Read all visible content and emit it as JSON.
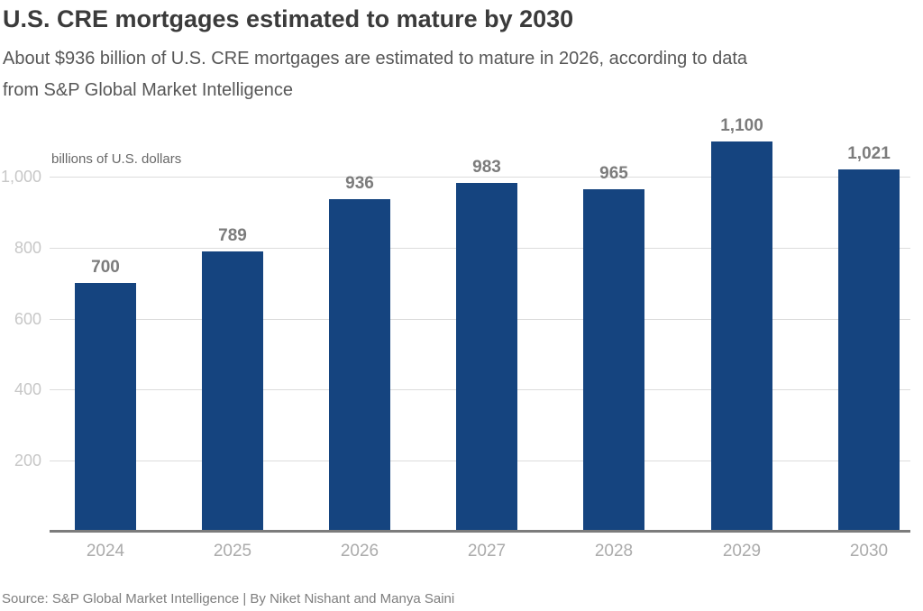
{
  "header": {
    "title": "U.S. CRE mortgages estimated to mature by 2030",
    "subtitle_line1": "About $936 billion of U.S. CRE mortgages are estimated to mature in 2026, according to data",
    "subtitle_line2": "from S&P Global Market Intelligence"
  },
  "chart_data": {
    "type": "bar",
    "title": "U.S. CRE mortgages estimated to mature by 2030",
    "unit_label": "billions of U.S. dollars",
    "categories": [
      "2024",
      "2025",
      "2026",
      "2027",
      "2028",
      "2029",
      "2030"
    ],
    "values": [
      700,
      789,
      936,
      983,
      965,
      1100,
      1021
    ],
    "value_labels": [
      "700",
      "789",
      "936",
      "983",
      "965",
      "1,100",
      "1,021"
    ],
    "xlabel": "",
    "ylabel": "billions of U.S. dollars",
    "y_ticks": [
      200,
      400,
      600,
      800,
      1000
    ],
    "y_tick_labels": [
      "200",
      "400",
      "600",
      "800",
      "1,000"
    ],
    "ylim": [
      0,
      1145
    ],
    "grid": true,
    "legend": false,
    "bar_color": "#15447f"
  },
  "footer": {
    "source": "Source: S&P Global Market Intelligence | By Niket Nishant and Manya Saini"
  },
  "colors": {
    "bar": "#15447f",
    "title_text": "#3b3b3b",
    "subtitle_text": "#575757",
    "value_label_text": "#7c7c7c",
    "y_tick_text": "#c7c7c7",
    "x_label_text": "#ababab",
    "gridline": "#dcdcdc",
    "axis_line": "#7c7c7c",
    "background": "#ffffff"
  }
}
